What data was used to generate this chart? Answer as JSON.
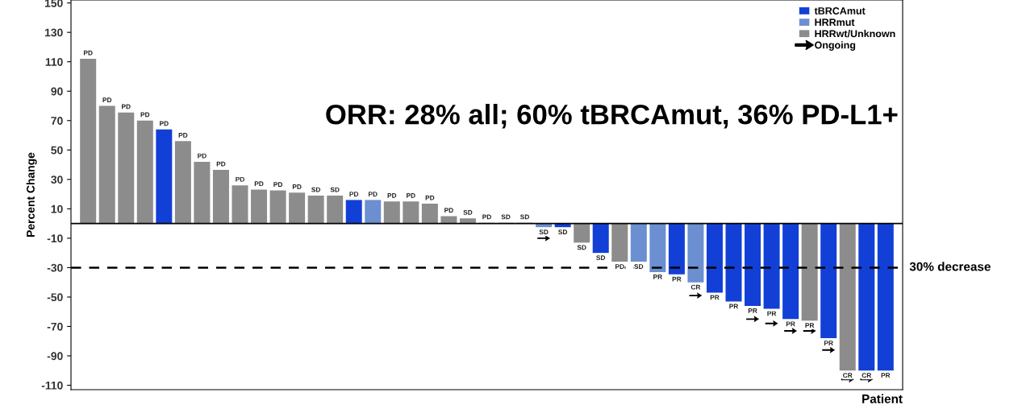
{
  "chart_data": {
    "type": "bar",
    "categories": [
      null,
      null,
      null,
      null,
      null,
      null,
      null,
      null,
      null,
      null,
      null,
      null,
      null,
      null,
      null,
      null,
      null,
      null,
      null,
      null,
      null,
      null,
      null,
      null,
      null,
      null,
      null,
      null,
      null,
      null,
      null,
      null,
      null,
      null,
      null,
      null,
      null,
      null,
      null,
      null,
      null,
      null,
      null
    ],
    "series": [
      {
        "name": "tBRCAmut",
        "color": "#1240d6",
        "values": [
          null,
          null,
          null,
          null,
          64,
          null,
          null,
          null,
          null,
          null,
          null,
          null,
          null,
          null,
          16,
          null,
          null,
          null,
          null,
          null,
          null,
          null,
          null,
          null,
          null,
          -2.5,
          null,
          -20,
          null,
          null,
          null,
          -34.5,
          null,
          -47,
          -53,
          -56,
          -58,
          -65,
          null,
          -78,
          null,
          -100,
          -100
        ],
        "value_labels": [
          null,
          null,
          null,
          null,
          "PD",
          null,
          null,
          null,
          null,
          null,
          null,
          null,
          null,
          null,
          "PD",
          null,
          null,
          null,
          null,
          null,
          null,
          null,
          null,
          null,
          null,
          "SD",
          null,
          "SD",
          null,
          null,
          null,
          "PR",
          null,
          "PR",
          "PR",
          "PR",
          "PR",
          "PR",
          null,
          "PR",
          null,
          "CR",
          "PR"
        ]
      },
      {
        "name": "HRRmut",
        "color": "#6b8fd0",
        "values": [
          null,
          null,
          null,
          null,
          null,
          null,
          null,
          null,
          null,
          null,
          null,
          null,
          null,
          null,
          null,
          16,
          null,
          null,
          null,
          null,
          null,
          null,
          null,
          null,
          -2.5,
          null,
          null,
          null,
          null,
          -26,
          -33,
          null,
          -40,
          null,
          null,
          null,
          null,
          null,
          null,
          null,
          null,
          null,
          null
        ],
        "value_labels": [
          null,
          null,
          null,
          null,
          null,
          null,
          null,
          null,
          null,
          null,
          null,
          null,
          null,
          null,
          null,
          "PD",
          null,
          null,
          null,
          null,
          null,
          null,
          null,
          null,
          "SD",
          null,
          null,
          null,
          null,
          "SD",
          "PR",
          null,
          "CR",
          null,
          null,
          null,
          null,
          null,
          null,
          null,
          null,
          null,
          null
        ]
      },
      {
        "name": "HRRwt/Unknown",
        "color": "#8c8c8c",
        "values": [
          112,
          80,
          75.5,
          70,
          null,
          56,
          42,
          36.5,
          26,
          23,
          22.5,
          21,
          19,
          19,
          null,
          null,
          15,
          15,
          13.5,
          5,
          3.5,
          0.5,
          0.5,
          0.5,
          null,
          null,
          -13,
          null,
          -26,
          null,
          null,
          null,
          null,
          null,
          null,
          null,
          null,
          null,
          -66,
          null,
          -100,
          null,
          null
        ],
        "value_labels": [
          "PD",
          "PD",
          "PD",
          "PD",
          null,
          "PD",
          "PD",
          "PD",
          "PD",
          "PD",
          "PD",
          "PD",
          "SD",
          "SD",
          null,
          null,
          "PD",
          "PD",
          "PD",
          "PD",
          "SD",
          "PD",
          "SD",
          "SD",
          null,
          null,
          "SD",
          null,
          "PD",
          null,
          null,
          null,
          null,
          null,
          null,
          null,
          null,
          null,
          "PR",
          null,
          "CR",
          null,
          null
        ]
      },
      {
        "name": "Ongoing",
        "type": "scatter",
        "color": "#000000",
        "values": [
          null,
          null,
          null,
          null,
          null,
          null,
          null,
          null,
          null,
          null,
          null,
          null,
          null,
          null,
          null,
          null,
          null,
          null,
          null,
          null,
          null,
          null,
          null,
          null,
          -10,
          null,
          null,
          null,
          null,
          null,
          null,
          null,
          -49,
          null,
          null,
          -65,
          -68,
          -73,
          -73,
          -86,
          -106,
          -106,
          null
        ]
      }
    ],
    "xlabel": "Patient",
    "ylabel": "Percent Change",
    "ylim": [
      -113,
      152
    ],
    "yticks": [
      -110,
      -90,
      -70,
      -50,
      -30,
      -10,
      10,
      30,
      50,
      70,
      90,
      110,
      130,
      150
    ],
    "ref_lines": [
      {
        "axis": "y",
        "value": -30,
        "label": "30% decrease",
        "line_style": "dashed",
        "color": "#000000"
      }
    ],
    "annotations": [
      "ORR: 28% all; 60% tBRCAmut, 36% PD-L1+"
    ],
    "legend": "top right",
    "grid": false
  }
}
